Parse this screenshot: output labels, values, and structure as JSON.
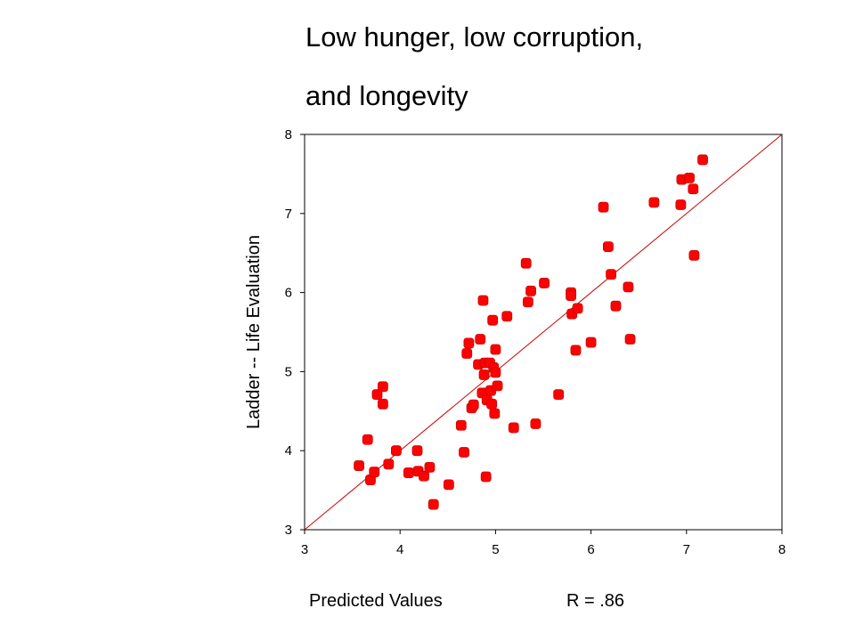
{
  "slide": {
    "title_line1": "Low hunger, low corruption,",
    "title_line2": "and longevity",
    "r_value": "R = .86"
  },
  "chart_data": {
    "type": "scatter",
    "title": "",
    "xlabel": "Predicted Values",
    "ylabel": "Ladder -- Life Evaluation",
    "xlim": [
      3,
      8
    ],
    "ylim": [
      3,
      8
    ],
    "xticks": [
      3,
      4,
      5,
      6,
      7,
      8
    ],
    "yticks": [
      3,
      4,
      5,
      6,
      7,
      8
    ],
    "point_color": "#ff0000",
    "line_color": "#cc0000",
    "reference_line": {
      "from": [
        3,
        3
      ],
      "to": [
        8,
        8
      ]
    },
    "x": [
      3.57,
      3.66,
      3.69,
      3.73,
      3.76,
      3.82,
      3.82,
      3.88,
      3.96,
      4.09,
      4.18,
      4.19,
      4.25,
      4.31,
      4.35,
      4.51,
      4.64,
      4.67,
      4.7,
      4.72,
      4.75,
      4.77,
      4.82,
      4.84,
      4.86,
      4.87,
      4.88,
      4.89,
      4.9,
      4.91,
      4.94,
      4.95,
      4.96,
      4.97,
      4.98,
      4.99,
      5.0,
      5.0,
      5.02,
      5.12,
      5.19,
      5.32,
      5.34,
      5.37,
      5.42,
      5.51,
      5.66,
      5.79,
      5.79,
      5.8,
      5.84,
      5.86,
      6.0,
      6.13,
      6.18,
      6.21,
      6.26,
      6.39,
      6.41,
      6.66,
      6.94,
      6.95,
      7.03,
      7.07,
      7.08,
      7.17
    ],
    "y": [
      3.81,
      4.14,
      3.63,
      3.73,
      4.71,
      4.81,
      4.59,
      3.83,
      4.0,
      3.72,
      4.0,
      3.74,
      3.68,
      3.79,
      3.32,
      3.57,
      4.32,
      3.98,
      5.23,
      5.36,
      4.54,
      4.58,
      5.09,
      5.41,
      4.73,
      5.9,
      4.96,
      5.11,
      3.67,
      4.64,
      5.11,
      4.76,
      4.59,
      5.65,
      5.05,
      4.47,
      5.28,
      4.99,
      4.82,
      5.7,
      4.29,
      6.37,
      5.88,
      6.02,
      4.34,
      6.12,
      4.71,
      6.0,
      5.96,
      5.73,
      5.27,
      5.8,
      5.37,
      7.08,
      6.58,
      6.23,
      5.83,
      6.07,
      5.41,
      7.14,
      7.11,
      7.43,
      7.45,
      7.31,
      6.47,
      7.68
    ]
  }
}
